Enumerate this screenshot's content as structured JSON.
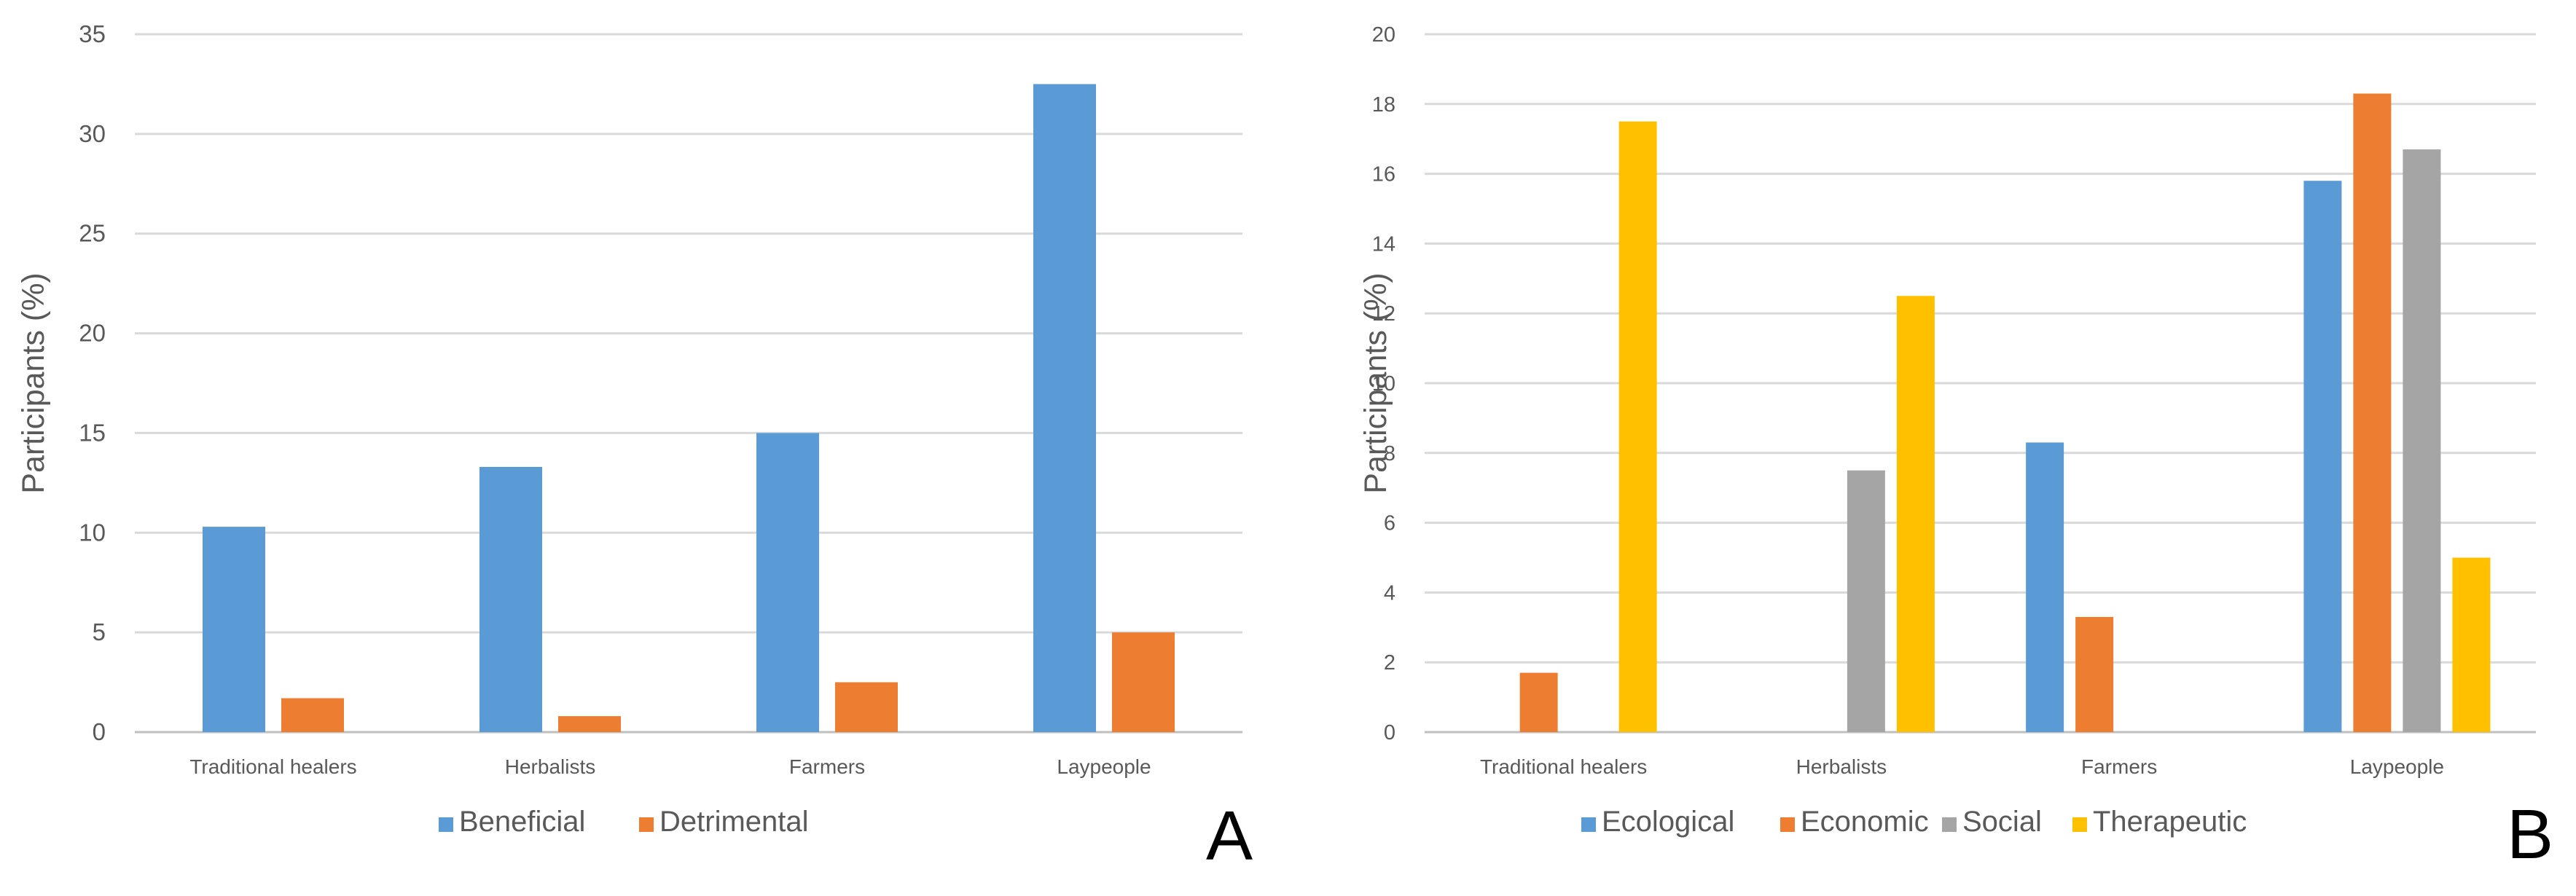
{
  "chart_data": [
    {
      "panel": "A",
      "type": "bar",
      "title": "",
      "xlabel": "",
      "ylabel": "Participants (%)",
      "categories": [
        "Traditional healers",
        "Herbalists",
        "Farmers",
        "Laypeople"
      ],
      "ylim": [
        0,
        35
      ],
      "yticks": [
        0,
        5,
        10,
        15,
        20,
        25,
        30,
        35
      ],
      "grid": true,
      "legend_position": "bottom",
      "series": [
        {
          "name": "Beneficial",
          "color": "#5b9bd5",
          "values": [
            10.3,
            13.3,
            15.0,
            32.5
          ]
        },
        {
          "name": "Detrimental",
          "color": "#ed7d31",
          "values": [
            1.7,
            0.8,
            2.5,
            5.0
          ]
        }
      ]
    },
    {
      "panel": "B",
      "type": "bar",
      "title": "",
      "xlabel": "",
      "ylabel": "Participants (%)",
      "categories": [
        "Traditional healers",
        "Herbalists",
        "Farmers",
        "Laypeople"
      ],
      "ylim": [
        0,
        20
      ],
      "yticks": [
        0,
        2,
        4,
        6,
        8,
        10,
        12,
        14,
        16,
        18,
        20
      ],
      "grid": true,
      "legend_position": "bottom",
      "series": [
        {
          "name": "Ecological",
          "color": "#5b9bd5",
          "values": [
            0,
            0,
            8.3,
            15.8
          ]
        },
        {
          "name": "Economic",
          "color": "#ed7d31",
          "values": [
            1.7,
            0,
            3.3,
            18.3
          ]
        },
        {
          "name": "Social",
          "color": "#a5a5a5",
          "values": [
            0,
            7.5,
            0,
            16.7
          ]
        },
        {
          "name": "Therapeutic",
          "color": "#ffc000",
          "values": [
            17.5,
            12.5,
            0,
            5.0
          ]
        }
      ]
    }
  ]
}
